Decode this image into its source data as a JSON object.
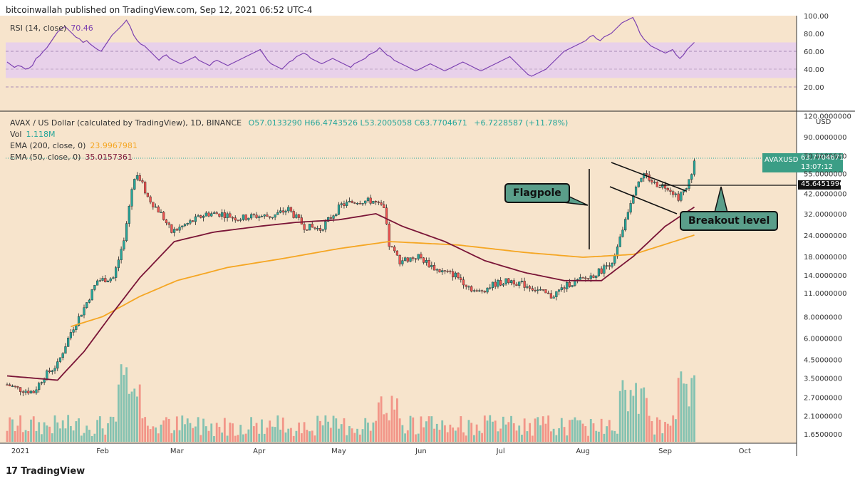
{
  "header": {
    "published": "bitcoinwallah published on TradingView.com, Sep 12, 2021 06:52 UTC-4"
  },
  "rsi": {
    "label": "RSI (14, close)",
    "value": "70.46",
    "color": "#7b3fb0",
    "ticks": [
      "100.00",
      "80.00",
      "60.00",
      "40.00",
      "20.00"
    ],
    "band": [
      30,
      70
    ],
    "values": [
      48,
      45,
      42,
      44,
      43,
      40,
      41,
      44,
      52,
      55,
      60,
      64,
      70,
      76,
      82,
      85,
      88,
      84,
      80,
      76,
      74,
      70,
      72,
      68,
      65,
      62,
      60,
      66,
      72,
      78,
      82,
      86,
      90,
      95,
      88,
      78,
      72,
      68,
      66,
      62,
      58,
      54,
      50,
      54,
      56,
      52,
      50,
      48,
      46,
      48,
      50,
      52,
      54,
      50,
      48,
      46,
      44,
      48,
      50,
      48,
      46,
      44,
      46,
      48,
      50,
      52,
      54,
      56,
      58,
      60,
      62,
      56,
      50,
      46,
      44,
      42,
      40,
      44,
      48,
      50,
      54,
      56,
      58,
      56,
      52,
      50,
      48,
      46,
      48,
      50,
      52,
      50,
      48,
      46,
      44,
      42,
      46,
      48,
      50,
      52,
      56,
      58,
      60,
      64,
      60,
      56,
      54,
      50,
      48,
      46,
      44,
      42,
      40,
      38,
      40,
      42,
      44,
      46,
      44,
      42,
      40,
      38,
      40,
      42,
      44,
      46,
      48,
      46,
      44,
      42,
      40,
      38,
      40,
      42,
      44,
      46,
      48,
      50,
      52,
      54,
      50,
      46,
      42,
      38,
      34,
      32,
      34,
      36,
      38,
      40,
      44,
      48,
      52,
      56,
      60,
      62,
      64,
      66,
      68,
      70,
      72,
      76,
      78,
      74,
      72,
      76,
      78,
      80,
      84,
      88,
      92,
      94,
      96,
      98,
      90,
      80,
      74,
      70,
      66,
      64,
      62,
      60,
      58,
      60,
      62,
      56,
      52,
      56,
      62,
      66,
      70
    ]
  },
  "price": {
    "title": "AVAX / US Dollar (calculated by TradingView), 1D, BINANCE",
    "ohlc": "O57.0133290  H66.4743526  L53.2005058  C63.7704671",
    "change": "+6.7228587 (+11.78%)",
    "vol_label": "Vol",
    "vol_value": "1.118M",
    "ema200_label": "EMA (200, close, 0)",
    "ema200_value": "23.9967981",
    "ema50_label": "EMA (50, close, 0)",
    "ema50_value": "35.0157361",
    "currency": "USD",
    "y_ticks": [
      "120.0000000",
      "90.0000000",
      "70.0000000",
      "55.0000000",
      "42.0000000",
      "32.0000000",
      "24.0000000",
      "18.0000000",
      "14.0000000",
      "11.0000000",
      "8.0000000",
      "6.0000000",
      "4.5000000",
      "3.5000000",
      "2.7000000",
      "2.1000000",
      "1.6500000"
    ],
    "last_price_tag": {
      "symbol": "AVAXUSD",
      "price": "63.7704671",
      "countdown": "13:07:12"
    },
    "breakout_tag": "45.6451996",
    "x_ticks": [
      "2021",
      "Feb",
      "Mar",
      "Apr",
      "May",
      "Jun",
      "Jul",
      "Aug",
      "Sep",
      "Oct"
    ]
  },
  "annotations": {
    "flagpole": "Flagpole",
    "breakout": "Breakout level"
  },
  "colors": {
    "up": "#26a69a",
    "down": "#ef5350",
    "ema50": "#7a1537",
    "ema200": "#f5a623",
    "band": "#e8d1ea",
    "bg": "#f7e4cc"
  },
  "chart_data": {
    "type": "candlestick",
    "title": "AVAX / US Dollar (calculated by TradingView), 1D, BINANCE",
    "ylabel": "USD",
    "yscale": "log",
    "ylim": [
      1.6,
      125
    ],
    "x_range": [
      "2020-12-27",
      "2021-10-20"
    ],
    "key_levels": {
      "last_price": 63.7704671,
      "breakout_level": 45.6451996,
      "ema200": 23.9967981,
      "ema50": 35.0157361
    },
    "close_anchors": [
      [
        "2020-12-27",
        3.2
      ],
      [
        "2021-01-01",
        3.0
      ],
      [
        "2021-01-06",
        2.9
      ],
      [
        "2021-01-10",
        3.6
      ],
      [
        "2021-01-15",
        4.2
      ],
      [
        "2021-01-20",
        6.5
      ],
      [
        "2021-01-25",
        9.0
      ],
      [
        "2021-01-30",
        13.0
      ],
      [
        "2021-02-05",
        13.5
      ],
      [
        "2021-02-09",
        22.0
      ],
      [
        "2021-02-12",
        45.0
      ],
      [
        "2021-02-14",
        56.0
      ],
      [
        "2021-02-18",
        40.0
      ],
      [
        "2021-02-23",
        32.0
      ],
      [
        "2021-02-27",
        25.0
      ],
      [
        "2021-03-05",
        28.0
      ],
      [
        "2021-03-12",
        32.0
      ],
      [
        "2021-03-18",
        32.0
      ],
      [
        "2021-03-24",
        30.0
      ],
      [
        "2021-03-30",
        31.0
      ],
      [
        "2021-04-06",
        31.0
      ],
      [
        "2021-04-12",
        34.0
      ],
      [
        "2021-04-18",
        27.0
      ],
      [
        "2021-04-24",
        26.0
      ],
      [
        "2021-05-02",
        36.0
      ],
      [
        "2021-05-08",
        38.0
      ],
      [
        "2021-05-14",
        38.0
      ],
      [
        "2021-05-18",
        34.0
      ],
      [
        "2021-05-20",
        21.0
      ],
      [
        "2021-05-24",
        17.0
      ],
      [
        "2021-05-31",
        18.0
      ],
      [
        "2021-06-07",
        15.0
      ],
      [
        "2021-06-14",
        14.0
      ],
      [
        "2021-06-22",
        11.0
      ],
      [
        "2021-06-29",
        12.5
      ],
      [
        "2021-07-05",
        13.0
      ],
      [
        "2021-07-12",
        12.0
      ],
      [
        "2021-07-20",
        10.5
      ],
      [
        "2021-07-27",
        12.5
      ],
      [
        "2021-08-03",
        13.5
      ],
      [
        "2021-08-08",
        15.0
      ],
      [
        "2021-08-13",
        17.5
      ],
      [
        "2021-08-17",
        30.0
      ],
      [
        "2021-08-21",
        48.0
      ],
      [
        "2021-08-24",
        55.0
      ],
      [
        "2021-08-28",
        48.0
      ],
      [
        "2021-09-02",
        46.0
      ],
      [
        "2021-09-06",
        40.0
      ],
      [
        "2021-09-09",
        44.0
      ],
      [
        "2021-09-12",
        63.77
      ]
    ],
    "ema50_anchors": [
      [
        "2020-12-27",
        3.6
      ],
      [
        "2021-01-15",
        3.4
      ],
      [
        "2021-01-25",
        5.0
      ],
      [
        "2021-02-05",
        8.5
      ],
      [
        "2021-02-15",
        13.5
      ],
      [
        "2021-02-28",
        22.0
      ],
      [
        "2021-03-15",
        25.0
      ],
      [
        "2021-04-01",
        27.0
      ],
      [
        "2021-04-15",
        28.5
      ],
      [
        "2021-05-01",
        29.5
      ],
      [
        "2021-05-15",
        32.0
      ],
      [
        "2021-05-25",
        27.0
      ],
      [
        "2021-06-10",
        22.0
      ],
      [
        "2021-06-25",
        17.0
      ],
      [
        "2021-07-10",
        14.5
      ],
      [
        "2021-07-25",
        13.0
      ],
      [
        "2021-08-08",
        13.0
      ],
      [
        "2021-08-20",
        18.0
      ],
      [
        "2021-09-01",
        27.0
      ],
      [
        "2021-09-12",
        35.0
      ]
    ],
    "ema200_anchors": [
      [
        "2021-01-20",
        7.0
      ],
      [
        "2021-02-01",
        8.0
      ],
      [
        "2021-02-15",
        10.5
      ],
      [
        "2021-03-01",
        13.0
      ],
      [
        "2021-03-20",
        15.5
      ],
      [
        "2021-04-10",
        17.5
      ],
      [
        "2021-05-01",
        20.0
      ],
      [
        "2021-05-20",
        22.0
      ],
      [
        "2021-06-15",
        21.0
      ],
      [
        "2021-07-10",
        19.0
      ],
      [
        "2021-08-01",
        17.8
      ],
      [
        "2021-08-20",
        18.5
      ],
      [
        "2021-09-12",
        24.0
      ]
    ]
  }
}
